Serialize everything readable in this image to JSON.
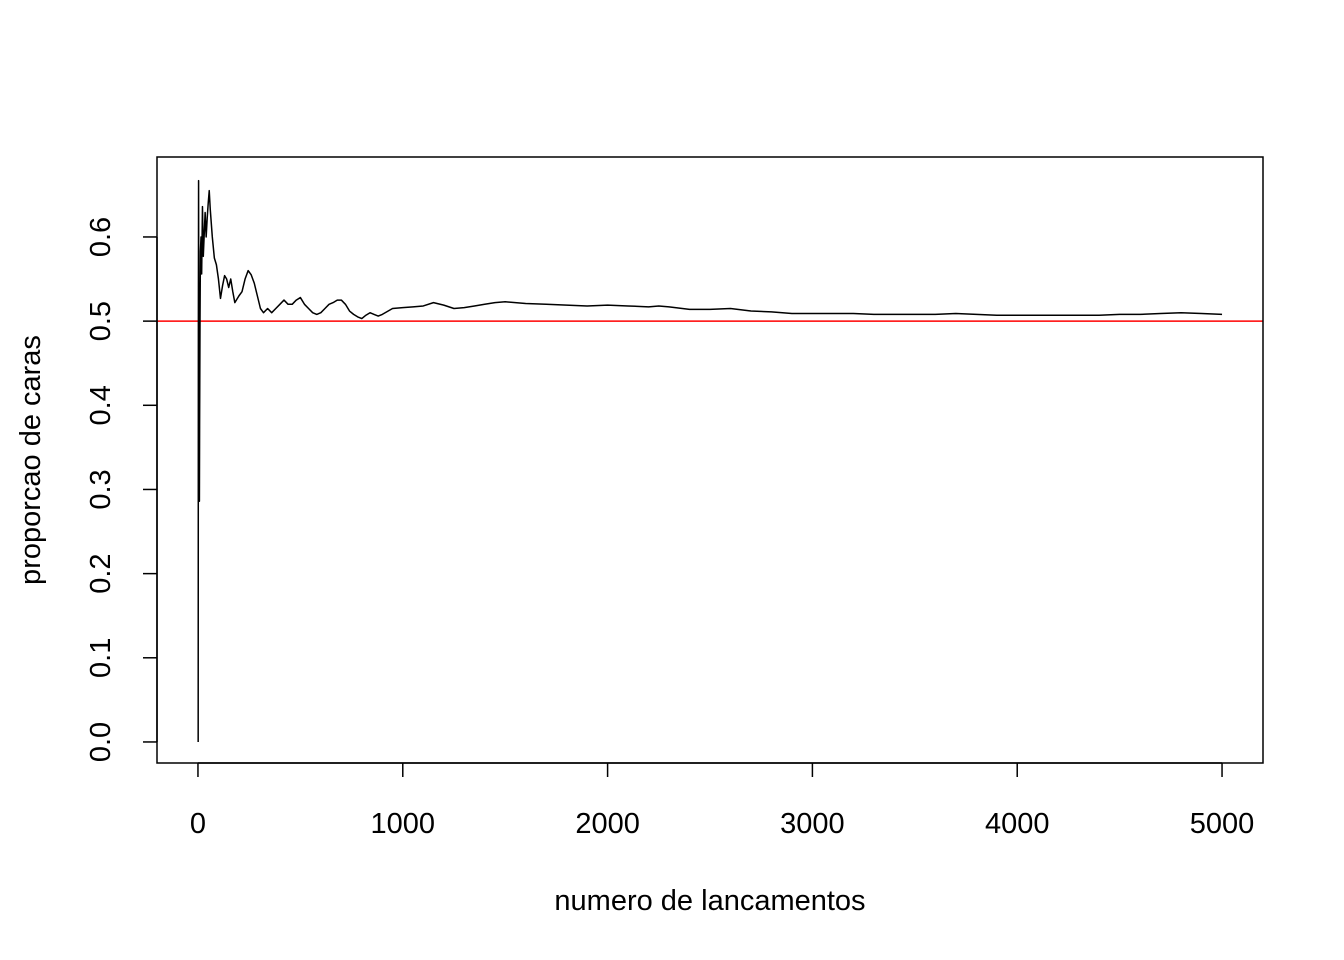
{
  "chart_data": {
    "type": "line",
    "title": "",
    "xlabel": "numero de lancamentos",
    "ylabel": "proporcao de caras",
    "xlim": [
      -200,
      5200
    ],
    "ylim": [
      -0.025,
      0.695
    ],
    "x_ticks": [
      0,
      1000,
      2000,
      3000,
      4000,
      5000
    ],
    "x_tick_labels": [
      "0",
      "1000",
      "2000",
      "3000",
      "4000",
      "5000"
    ],
    "y_ticks": [
      0.0,
      0.1,
      0.2,
      0.3,
      0.4,
      0.5,
      0.6
    ],
    "y_tick_labels": [
      "0.0",
      "0.1",
      "0.2",
      "0.3",
      "0.4",
      "0.5",
      "0.6"
    ],
    "grid": false,
    "legend": "none",
    "series": [
      {
        "color": "#000000",
        "x": [
          1,
          2,
          3,
          4,
          5,
          6,
          7,
          8,
          10,
          12,
          15,
          18,
          22,
          26,
          30,
          35,
          40,
          45,
          50,
          55,
          60,
          70,
          80,
          90,
          100,
          110,
          120,
          130,
          140,
          150,
          160,
          170,
          180,
          190,
          200,
          215,
          230,
          245,
          260,
          275,
          290,
          305,
          320,
          340,
          360,
          380,
          400,
          420,
          440,
          460,
          480,
          500,
          520,
          540,
          560,
          580,
          600,
          620,
          640,
          660,
          680,
          700,
          720,
          740,
          760,
          780,
          800,
          820,
          840,
          860,
          880,
          900,
          950,
          1000,
          1050,
          1100,
          1150,
          1200,
          1250,
          1300,
          1350,
          1400,
          1450,
          1500,
          1600,
          1700,
          1800,
          1900,
          2000,
          2100,
          2200,
          2250,
          2300,
          2400,
          2500,
          2600,
          2700,
          2800,
          2900,
          3000,
          3100,
          3200,
          3300,
          3400,
          3500,
          3600,
          3700,
          3800,
          3900,
          4000,
          4100,
          4200,
          4300,
          4400,
          4500,
          4600,
          4700,
          4800,
          4900,
          5000
        ],
        "y": [
          0.0,
          0.5,
          0.667,
          0.5,
          0.4,
          0.333,
          0.286,
          0.375,
          0.5,
          0.583,
          0.6,
          0.556,
          0.636,
          0.577,
          0.6,
          0.629,
          0.6,
          0.622,
          0.64,
          0.655,
          0.633,
          0.6,
          0.575,
          0.567,
          0.55,
          0.527,
          0.542,
          0.554,
          0.55,
          0.54,
          0.55,
          0.535,
          0.522,
          0.526,
          0.53,
          0.535,
          0.55,
          0.56,
          0.555,
          0.545,
          0.53,
          0.515,
          0.51,
          0.515,
          0.51,
          0.515,
          0.52,
          0.525,
          0.52,
          0.52,
          0.525,
          0.528,
          0.52,
          0.515,
          0.51,
          0.508,
          0.51,
          0.515,
          0.52,
          0.522,
          0.525,
          0.525,
          0.52,
          0.512,
          0.508,
          0.505,
          0.503,
          0.507,
          0.51,
          0.508,
          0.506,
          0.508,
          0.515,
          0.516,
          0.517,
          0.518,
          0.522,
          0.519,
          0.515,
          0.516,
          0.518,
          0.52,
          0.522,
          0.523,
          0.521,
          0.52,
          0.519,
          0.518,
          0.519,
          0.518,
          0.517,
          0.518,
          0.517,
          0.514,
          0.514,
          0.515,
          0.512,
          0.511,
          0.509,
          0.509,
          0.509,
          0.509,
          0.508,
          0.508,
          0.508,
          0.508,
          0.509,
          0.508,
          0.507,
          0.507,
          0.507,
          0.507,
          0.507,
          0.507,
          0.508,
          0.508,
          0.509,
          0.51,
          0.509,
          0.508
        ]
      }
    ],
    "reference_lines": [
      {
        "orientation": "horizontal",
        "y": 0.5,
        "color": "#ff0000"
      }
    ]
  }
}
